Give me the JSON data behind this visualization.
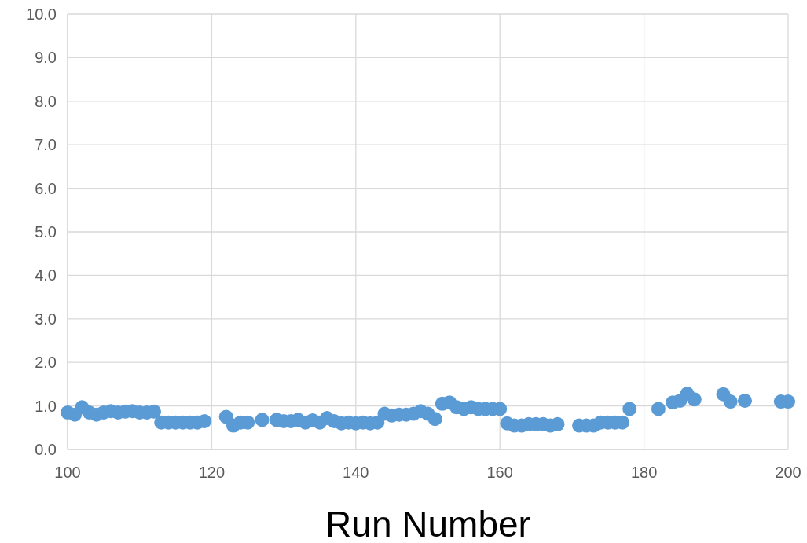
{
  "chart_data": {
    "type": "scatter",
    "xlabel": "Run Number",
    "x": [
      100,
      101,
      102,
      103,
      104,
      105,
      106,
      107,
      108,
      109,
      110,
      111,
      112,
      113,
      114,
      115,
      116,
      117,
      118,
      119,
      122,
      123,
      124,
      125,
      127,
      129,
      130,
      131,
      132,
      133,
      134,
      135,
      136,
      137,
      138,
      139,
      140,
      141,
      142,
      143,
      144,
      145,
      146,
      147,
      148,
      149,
      150,
      151,
      152,
      153,
      154,
      155,
      156,
      157,
      158,
      159,
      160,
      161,
      162,
      163,
      164,
      165,
      166,
      167,
      168,
      171,
      172,
      173,
      174,
      175,
      176,
      177,
      178,
      182,
      184,
      185,
      186,
      187,
      191,
      192,
      194,
      199,
      200
    ],
    "series": [
      {
        "color": "#5b9bd5",
        "values": [
          0.85,
          0.8,
          0.97,
          0.85,
          0.8,
          0.85,
          0.88,
          0.85,
          0.87,
          0.88,
          0.85,
          0.85,
          0.87,
          0.62,
          0.62,
          0.62,
          0.62,
          0.62,
          0.62,
          0.65,
          0.75,
          0.55,
          0.62,
          0.62,
          0.68,
          0.68,
          0.65,
          0.65,
          0.68,
          0.62,
          0.67,
          0.62,
          0.72,
          0.65,
          0.6,
          0.62,
          0.6,
          0.62,
          0.6,
          0.62,
          0.82,
          0.78,
          0.8,
          0.8,
          0.82,
          0.88,
          0.82,
          0.7,
          1.05,
          1.08,
          0.97,
          0.93,
          0.97,
          0.93,
          0.93,
          0.93,
          0.93,
          0.6,
          0.55,
          0.55,
          0.58,
          0.58,
          0.58,
          0.55,
          0.58,
          0.55,
          0.55,
          0.55,
          0.62,
          0.62,
          0.62,
          0.62,
          0.93,
          0.93,
          1.08,
          1.12,
          1.28,
          1.15,
          1.27,
          1.1,
          1.12,
          1.1,
          1.1
        ]
      }
    ],
    "xlim": [
      100,
      200
    ],
    "xticks": [
      100,
      120,
      140,
      160,
      180,
      200
    ],
    "ylim": [
      0,
      10
    ],
    "yticks": [
      {
        "value": 0,
        "label": "0.0"
      },
      {
        "value": 1,
        "label": "1.0"
      },
      {
        "value": 2,
        "label": "2.0"
      },
      {
        "value": 3,
        "label": "3.0"
      },
      {
        "value": 4,
        "label": "4.0"
      },
      {
        "value": 5,
        "label": "5.0"
      },
      {
        "value": 6,
        "label": "6.0"
      },
      {
        "value": 7,
        "label": "7.0"
      },
      {
        "value": 8,
        "label": "8.0"
      },
      {
        "value": 9,
        "label": "9.0"
      },
      {
        "value": 10,
        "label": "10.0"
      }
    ],
    "grid": true,
    "marker": "circle"
  }
}
